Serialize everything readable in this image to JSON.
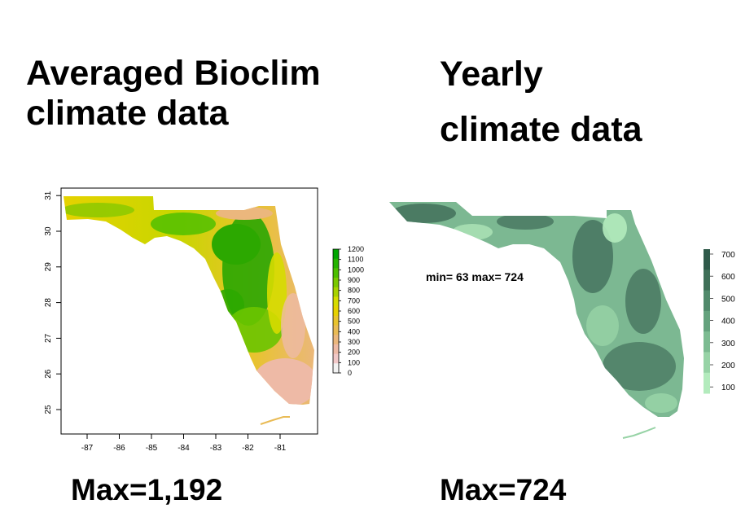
{
  "left_panel": {
    "title_lines": [
      "Averaged Bioclim",
      "climate data"
    ],
    "max_label": "Max=1,192",
    "map": {
      "x_ticks": [
        "-87",
        "-86",
        "-85",
        "-84",
        "-83",
        "-82",
        "-81"
      ],
      "y_ticks": [
        "25",
        "26",
        "27",
        "28",
        "29",
        "30",
        "31"
      ],
      "legend_values": [
        "1200",
        "1100",
        "1000",
        "900",
        "800",
        "700",
        "600",
        "500",
        "400",
        "300",
        "200",
        "100",
        "0"
      ],
      "legend_colors": [
        "#00a600",
        "#24b300",
        "#4cbe00",
        "#7ac800",
        "#a8d200",
        "#d6dc00",
        "#e6d200",
        "#e8c32e",
        "#e9bb55",
        "#ebb77d",
        "#eebaa6",
        "#f1c8c8",
        "#f2f2f2"
      ],
      "palette": {
        "low": "#f2c6bb",
        "mid": "#e5c900",
        "high": "#1ea500"
      }
    }
  },
  "right_panel": {
    "title_lines": [
      "Yearly",
      "climate data"
    ],
    "max_label": "Max=724",
    "map": {
      "annotation": "min= 63  max= 724",
      "legend_values": [
        "700",
        "600",
        "500",
        "400",
        "300",
        "200",
        "100"
      ],
      "legend_colors": [
        "#2f5a4a",
        "#3f7058",
        "#518a6b",
        "#64a27d",
        "#7cbb91",
        "#97d3a6",
        "#b3ebbd"
      ],
      "palette": {
        "low": "#b3ebbd",
        "mid": "#7cb892",
        "high": "#3f6b58"
      }
    }
  }
}
